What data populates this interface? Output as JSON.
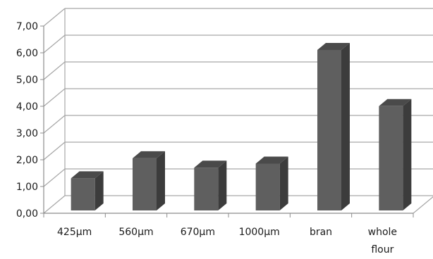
{
  "chart_data": {
    "type": "bar",
    "style": "3d-column",
    "categories": [
      "425µm",
      "560µm",
      "670µm",
      "1000µm",
      "bran",
      "whole flour"
    ],
    "category_lines": [
      [
        "425µm"
      ],
      [
        "560µm"
      ],
      [
        "670µm"
      ],
      [
        "1000µm"
      ],
      [
        "bran"
      ],
      [
        "whole",
        "flour"
      ]
    ],
    "values": [
      1.2,
      1.95,
      1.6,
      1.75,
      6.0,
      3.9
    ],
    "y_ticks": [
      "0,00",
      "1,00",
      "2,00",
      "3,00",
      "4,00",
      "5,00",
      "6,00",
      "7,00"
    ],
    "ylim": [
      0,
      7
    ],
    "grid": true,
    "legend": "none",
    "title": "",
    "xlabel": "",
    "ylabel": "",
    "colors": {
      "bar_front": "#5f5f5f",
      "bar_side": "#3c3c3c",
      "bar_top": "#4a4a4a",
      "gridline": "#a6a6a6",
      "axis": "#8c8c8c"
    }
  }
}
